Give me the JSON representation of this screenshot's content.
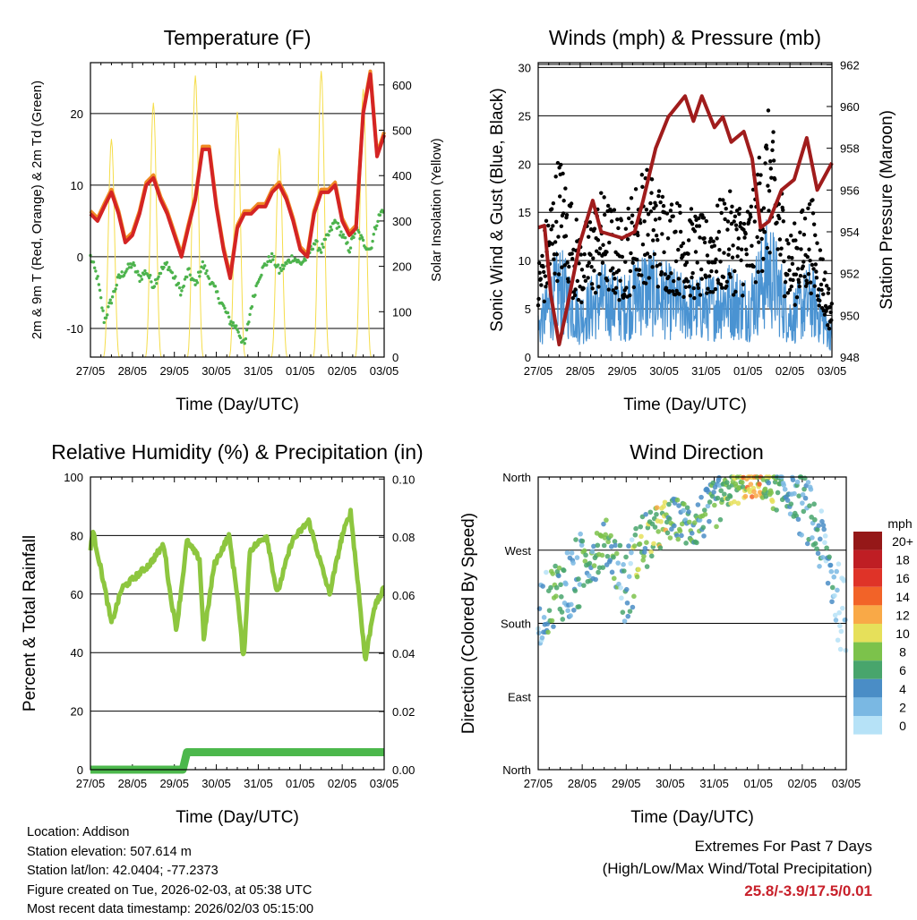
{
  "time_ticks": [
    "27/05",
    "28/05",
    "29/05",
    "30/05",
    "31/05",
    "01/05",
    "02/05",
    "03/05"
  ],
  "footer": {
    "location": "Location: Addison",
    "elevation": "Station elevation: 507.614 m",
    "latlon": "Station lat/lon: 42.0404; -77.2373",
    "created": "Figure created on Tue, 2026-02-03, at 05:38 UTC",
    "timestamp": "Most recent data timestamp: 2026/02/03 05:15:00",
    "extremes_title": "Extremes For Past 7 Days",
    "extremes_sub": "(High/Low/Max Wind/Total Precipitation)",
    "extremes_value": "25.8/-3.9/17.5/0.01"
  },
  "colors": {
    "temp2m": "#d42424",
    "temp9m": "#f08a24",
    "dew": "#4db34d",
    "solar": "#f5dd4a",
    "wind": "#4a93d2",
    "gust": "#000000",
    "pressure": "#a01c1c",
    "rh": "#8dc63f",
    "precip": "#4cb84c",
    "accent": "#c8202a"
  },
  "chart_data": [
    {
      "type": "line",
      "title": "Temperature (F)",
      "xlabel": "Time (Day/UTC)",
      "ylabel": "2m & 9m T (Red, Orange) & 2m Td (Green)",
      "y2label": "Solar Insolation (Yellow)",
      "xlim": [
        0,
        7
      ],
      "ylim": [
        -14,
        27.1
      ],
      "y2lim": [
        0,
        649
      ],
      "yticks": [
        -10,
        0,
        10,
        20
      ],
      "y2ticks": [
        0,
        100,
        200,
        300,
        400,
        500,
        600
      ],
      "series": [
        {
          "name": "2m T",
          "color_key": "temp2m",
          "points": [
            [
              0,
              6
            ],
            [
              0.17,
              5
            ],
            [
              0.33,
              7
            ],
            [
              0.5,
              9
            ],
            [
              0.67,
              6
            ],
            [
              0.83,
              2
            ],
            [
              1,
              3
            ],
            [
              1.17,
              6
            ],
            [
              1.33,
              10
            ],
            [
              1.5,
              11
            ],
            [
              1.67,
              8
            ],
            [
              1.83,
              6
            ],
            [
              2,
              3
            ],
            [
              2.17,
              0
            ],
            [
              2.33,
              4
            ],
            [
              2.5,
              8
            ],
            [
              2.67,
              15
            ],
            [
              2.83,
              15
            ],
            [
              3,
              7
            ],
            [
              3.17,
              1
            ],
            [
              3.33,
              -3
            ],
            [
              3.5,
              4
            ],
            [
              3.67,
              6
            ],
            [
              3.83,
              6
            ],
            [
              4,
              7
            ],
            [
              4.17,
              7
            ],
            [
              4.33,
              9
            ],
            [
              4.5,
              10
            ],
            [
              4.67,
              8
            ],
            [
              4.83,
              5
            ],
            [
              5,
              1
            ],
            [
              5.17,
              0
            ],
            [
              5.33,
              6
            ],
            [
              5.5,
              9
            ],
            [
              5.67,
              9
            ],
            [
              5.83,
              10
            ],
            [
              6,
              5
            ],
            [
              6.17,
              3
            ],
            [
              6.33,
              4
            ],
            [
              6.5,
              20
            ],
            [
              6.67,
              25.5
            ],
            [
              6.83,
              14
            ],
            [
              7,
              17
            ]
          ]
        },
        {
          "name": "2m Td",
          "color_key": "dew",
          "points": [
            [
              0,
              0
            ],
            [
              0.17,
              -3
            ],
            [
              0.33,
              -9
            ],
            [
              0.5,
              -6
            ],
            [
              0.67,
              -3
            ],
            [
              0.83,
              -2
            ],
            [
              1,
              -1
            ],
            [
              1.17,
              -3
            ],
            [
              1.33,
              -2
            ],
            [
              1.5,
              -4
            ],
            [
              1.67,
              -2
            ],
            [
              1.83,
              -1
            ],
            [
              2,
              -3
            ],
            [
              2.17,
              -5
            ],
            [
              2.33,
              -2
            ],
            [
              2.5,
              -4
            ],
            [
              2.67,
              -1
            ],
            [
              2.83,
              -3
            ],
            [
              3,
              -5
            ],
            [
              3.17,
              -7
            ],
            [
              3.33,
              -9
            ],
            [
              3.5,
              -10
            ],
            [
              3.67,
              -12.5
            ],
            [
              3.83,
              -7
            ],
            [
              4,
              -3
            ],
            [
              4.17,
              -1
            ],
            [
              4.33,
              0
            ],
            [
              4.5,
              -2
            ],
            [
              4.67,
              -1
            ],
            [
              4.83,
              0
            ],
            [
              5,
              -1
            ],
            [
              5.17,
              0
            ],
            [
              5.33,
              2
            ],
            [
              5.5,
              1
            ],
            [
              5.67,
              3
            ],
            [
              5.83,
              5
            ],
            [
              6,
              3
            ],
            [
              6.17,
              1
            ],
            [
              6.33,
              4
            ],
            [
              6.5,
              2
            ],
            [
              6.67,
              1
            ],
            [
              6.83,
              5
            ],
            [
              7,
              7
            ]
          ]
        }
      ],
      "solar_daily_peaks": [
        480,
        560,
        620,
        540,
        460,
        630,
        590
      ]
    },
    {
      "type": "line",
      "title": "Winds (mph) & Pressure (mb)",
      "xlabel": "Time (Day/UTC)",
      "ylabel": "Sonic Wind & Gust (Blue, Black)",
      "y2label": "Station Pressure (Maroon)",
      "xlim": [
        0,
        7
      ],
      "ylim": [
        0,
        30.5
      ],
      "y2lim": [
        948,
        962.1
      ],
      "yticks": [
        0,
        5,
        10,
        15,
        20,
        25,
        30
      ],
      "y2ticks": [
        948,
        950,
        952,
        954,
        956,
        958,
        960,
        962
      ],
      "wind_mean": [
        [
          0,
          3
        ],
        [
          0.5,
          7
        ],
        [
          1,
          4
        ],
        [
          1.5,
          6
        ],
        [
          2,
          5
        ],
        [
          2.5,
          7
        ],
        [
          3,
          6
        ],
        [
          3.5,
          5
        ],
        [
          4,
          5
        ],
        [
          4.5,
          6
        ],
        [
          5,
          5
        ],
        [
          5.5,
          9
        ],
        [
          6,
          4
        ],
        [
          6.5,
          6
        ],
        [
          7,
          2
        ]
      ],
      "gust_mean": [
        [
          0,
          7
        ],
        [
          0.5,
          15
        ],
        [
          1,
          9
        ],
        [
          1.5,
          12
        ],
        [
          2,
          10
        ],
        [
          2.5,
          14
        ],
        [
          3,
          12
        ],
        [
          3.5,
          11
        ],
        [
          4,
          10
        ],
        [
          4.5,
          12
        ],
        [
          5,
          11
        ],
        [
          5.5,
          18
        ],
        [
          6,
          9
        ],
        [
          6.5,
          12
        ],
        [
          7,
          4
        ]
      ],
      "pressure": [
        [
          0,
          954.2
        ],
        [
          0.15,
          954.3
        ],
        [
          0.3,
          951
        ],
        [
          0.5,
          948.6
        ],
        [
          0.7,
          950.5
        ],
        [
          1,
          953.5
        ],
        [
          1.3,
          955.5
        ],
        [
          1.5,
          954
        ],
        [
          2,
          953.7
        ],
        [
          2.3,
          954
        ],
        [
          2.5,
          955.5
        ],
        [
          2.8,
          958
        ],
        [
          3.1,
          959.5
        ],
        [
          3.5,
          960.5
        ],
        [
          3.7,
          959.3
        ],
        [
          3.9,
          960.5
        ],
        [
          4.2,
          959
        ],
        [
          4.4,
          959.5
        ],
        [
          4.6,
          958.3
        ],
        [
          4.9,
          958.8
        ],
        [
          5.1,
          957.5
        ],
        [
          5.3,
          954.2
        ],
        [
          5.5,
          954.5
        ],
        [
          5.8,
          956
        ],
        [
          6.1,
          956.5
        ],
        [
          6.4,
          958.5
        ],
        [
          6.65,
          956
        ],
        [
          7,
          957.3
        ]
      ]
    },
    {
      "type": "line",
      "title": "Relative Humidity (%) & Precipitation (in)",
      "xlabel": "Time (Day/UTC)",
      "ylabel": "Percent & Total Rainfall",
      "xlim": [
        0,
        7
      ],
      "ylim": [
        0,
        100
      ],
      "y2lim": [
        0,
        0.1007
      ],
      "yticks": [
        0,
        20,
        40,
        60,
        80,
        100
      ],
      "y2ticks": [
        "0.00",
        "0.02",
        "0.04",
        "0.06",
        "0.08",
        "0.10"
      ],
      "rh": [
        [
          0,
          75
        ],
        [
          0.05,
          82
        ],
        [
          0.3,
          65
        ],
        [
          0.5,
          50
        ],
        [
          0.75,
          62
        ],
        [
          1,
          65
        ],
        [
          1.4,
          70
        ],
        [
          1.75,
          77
        ],
        [
          1.9,
          60
        ],
        [
          2.05,
          48
        ],
        [
          2.3,
          78
        ],
        [
          2.6,
          72
        ],
        [
          2.7,
          45
        ],
        [
          2.95,
          70
        ],
        [
          3.3,
          80
        ],
        [
          3.5,
          60
        ],
        [
          3.65,
          37
        ],
        [
          3.8,
          75
        ],
        [
          4.2,
          80
        ],
        [
          4.45,
          60
        ],
        [
          4.8,
          78
        ],
        [
          5.2,
          85
        ],
        [
          5.5,
          70
        ],
        [
          5.7,
          60
        ],
        [
          6,
          80
        ],
        [
          6.2,
          88
        ],
        [
          6.4,
          60
        ],
        [
          6.55,
          37
        ],
        [
          6.75,
          55
        ],
        [
          7,
          62
        ]
      ],
      "precip": [
        [
          0,
          0
        ],
        [
          2.2,
          0
        ],
        [
          2.3,
          0.006
        ],
        [
          7,
          0.006
        ]
      ]
    },
    {
      "type": "scatter",
      "title": "Wind Direction",
      "xlabel": "Time (Day/UTC)",
      "ylabel": "Direction (Colored By Speed)",
      "xlim": [
        0,
        7
      ],
      "ylim": [
        0,
        360
      ],
      "yticks": [
        {
          "v": 0,
          "label": "North"
        },
        {
          "v": 90,
          "label": "East"
        },
        {
          "v": 180,
          "label": "South"
        },
        {
          "v": 270,
          "label": "West"
        },
        {
          "v": 360,
          "label": "North"
        }
      ],
      "direction_centers": [
        [
          0,
          190,
          40,
          3
        ],
        [
          0.4,
          220,
          40,
          7
        ],
        [
          0.8,
          230,
          50,
          5
        ],
        [
          1.2,
          265,
          35,
          6
        ],
        [
          1.6,
          280,
          30,
          7
        ],
        [
          2,
          220,
          50,
          4
        ],
        [
          2.3,
          275,
          40,
          8
        ],
        [
          2.7,
          295,
          30,
          10
        ],
        [
          3.1,
          310,
          25,
          7
        ],
        [
          3.5,
          300,
          30,
          6
        ],
        [
          3.9,
          320,
          30,
          6
        ],
        [
          4.4,
          345,
          20,
          9
        ],
        [
          4.9,
          350,
          15,
          12
        ],
        [
          5.3,
          345,
          25,
          8
        ],
        [
          5.7,
          340,
          25,
          5
        ],
        [
          6.1,
          320,
          40,
          5
        ],
        [
          6.5,
          270,
          40,
          4
        ],
        [
          6.9,
          190,
          50,
          2
        ]
      ],
      "legend": {
        "title": "mph",
        "labels": [
          "20+",
          "18",
          "16",
          "14",
          "12",
          "10",
          "8",
          "6",
          "4",
          "2",
          "0"
        ],
        "colors": [
          "#951818",
          "#bf1e24",
          "#df3328",
          "#f26328",
          "#f9a947",
          "#e6e05a",
          "#7cc24b",
          "#48a56c",
          "#4a8dc6",
          "#7ab8e3",
          "#b6e2f7"
        ]
      }
    }
  ]
}
